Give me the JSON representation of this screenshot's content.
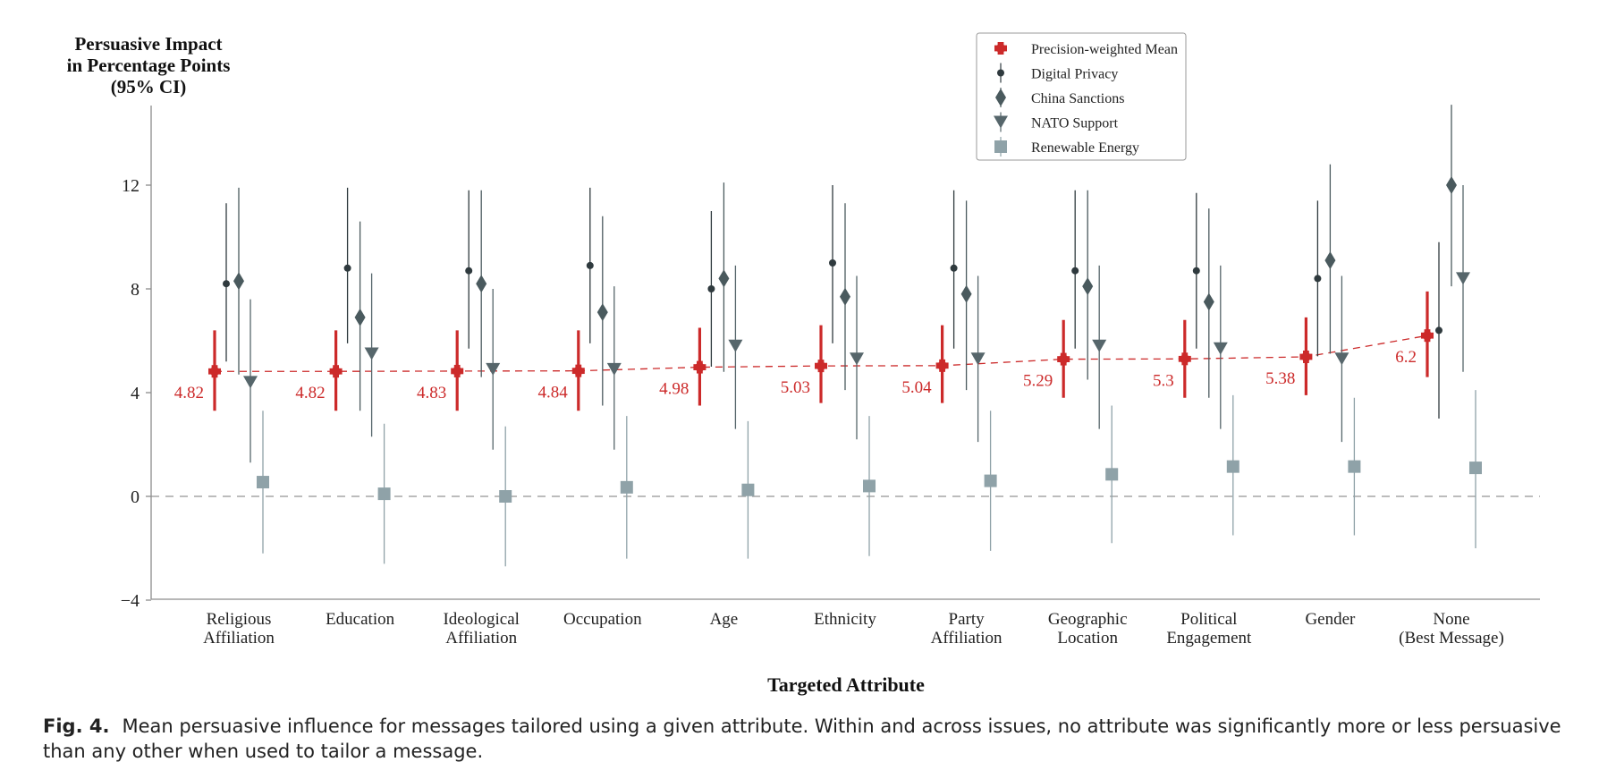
{
  "caption": {
    "label": "Fig. 4.",
    "text": "Mean persuasive influence for messages tailored using a given attribute. Within and across issues, no attribute was significantly more or less persuasive than any other when used to tailor a message."
  },
  "colors": {
    "precision_mean": "#cc2a2a",
    "digital_privacy": "#2f3a3e",
    "china_sanctions": "#4a5a5e",
    "nato_support": "#56666b",
    "renewable_energy": "#8fa2a8",
    "axis": "#8c8c8c",
    "zero_line": "#a6a6a6"
  },
  "chart_data": {
    "type": "scatter",
    "title": "",
    "ylabel_lines": [
      "Persuasive Impact",
      "in Percentage Points",
      "(95% CI)"
    ],
    "xlabel": "Targeted Attribute",
    "ylim": [
      -4,
      15
    ],
    "yticks": [
      -4,
      0,
      4,
      8,
      12
    ],
    "ytick_labels": [
      "−4",
      "0",
      "4",
      "8",
      "12"
    ],
    "zero_reference_line": true,
    "legend_position": "top-center",
    "categories": [
      [
        "Religious",
        "Affiliation"
      ],
      [
        "Education"
      ],
      [
        "Ideological",
        "Affiliation"
      ],
      [
        "Occupation"
      ],
      [
        "Age"
      ],
      [
        "Ethnicity"
      ],
      [
        "Party",
        "Affiliation"
      ],
      [
        "Geographic",
        "Location"
      ],
      [
        "Political",
        "Engagement"
      ],
      [
        "Gender"
      ],
      [
        "None",
        "(Best Message)"
      ]
    ],
    "series": [
      {
        "name": "Precision-weighted Mean",
        "marker": "cross",
        "values": [
          4.82,
          4.82,
          4.83,
          4.84,
          4.98,
          5.03,
          5.04,
          5.29,
          5.3,
          5.38,
          6.2
        ],
        "lower": [
          3.3,
          3.3,
          3.3,
          3.3,
          3.5,
          3.6,
          3.6,
          3.8,
          3.8,
          3.9,
          4.6
        ],
        "upper": [
          6.4,
          6.4,
          6.4,
          6.4,
          6.5,
          6.6,
          6.6,
          6.8,
          6.8,
          6.9,
          7.9
        ],
        "value_labels": [
          "4.82",
          "4.82",
          "4.83",
          "4.84",
          "4.98",
          "5.03",
          "5.04",
          "5.29",
          "5.3",
          "5.38",
          "6.2"
        ],
        "dashed_connector": true
      },
      {
        "name": "Digital Privacy",
        "marker": "circle",
        "values": [
          8.2,
          8.8,
          8.7,
          8.9,
          8.0,
          9.0,
          8.8,
          8.7,
          8.7,
          8.4,
          6.4
        ],
        "lower": [
          5.2,
          5.9,
          5.7,
          5.9,
          5.0,
          5.9,
          5.7,
          5.7,
          5.7,
          5.4,
          3.0
        ],
        "upper": [
          11.3,
          11.9,
          11.8,
          11.9,
          11.0,
          12.0,
          11.8,
          11.8,
          11.7,
          11.4,
          9.8
        ]
      },
      {
        "name": "China Sanctions",
        "marker": "diamond",
        "values": [
          8.3,
          6.9,
          8.2,
          7.1,
          8.4,
          7.7,
          7.8,
          8.1,
          7.5,
          9.1,
          12.0
        ],
        "lower": [
          4.7,
          3.3,
          4.6,
          3.5,
          4.8,
          4.1,
          4.1,
          4.5,
          3.8,
          5.5,
          8.1
        ],
        "upper": [
          11.9,
          10.6,
          11.8,
          10.8,
          12.1,
          11.3,
          11.4,
          11.8,
          11.1,
          12.8,
          15.1
        ]
      },
      {
        "name": "NATO Support",
        "marker": "triangle-down",
        "values": [
          4.4,
          5.5,
          4.9,
          4.9,
          5.8,
          5.3,
          5.3,
          5.8,
          5.7,
          5.3,
          8.4
        ],
        "lower": [
          1.3,
          2.3,
          1.8,
          1.8,
          2.6,
          2.2,
          2.1,
          2.6,
          2.6,
          2.1,
          4.8
        ],
        "upper": [
          7.6,
          8.6,
          8.0,
          8.1,
          8.9,
          8.5,
          8.5,
          8.9,
          8.9,
          8.5,
          12.0
        ]
      },
      {
        "name": "Renewable Energy",
        "marker": "square",
        "values": [
          0.55,
          0.1,
          0.0,
          0.35,
          0.25,
          0.4,
          0.6,
          0.85,
          1.15,
          1.15,
          1.1
        ],
        "lower": [
          -2.2,
          -2.6,
          -2.7,
          -2.4,
          -2.4,
          -2.3,
          -2.1,
          -1.8,
          -1.5,
          -1.5,
          -2.0
        ],
        "upper": [
          3.3,
          2.8,
          2.7,
          3.1,
          2.9,
          3.1,
          3.3,
          3.5,
          3.9,
          3.8,
          4.1
        ]
      }
    ]
  }
}
